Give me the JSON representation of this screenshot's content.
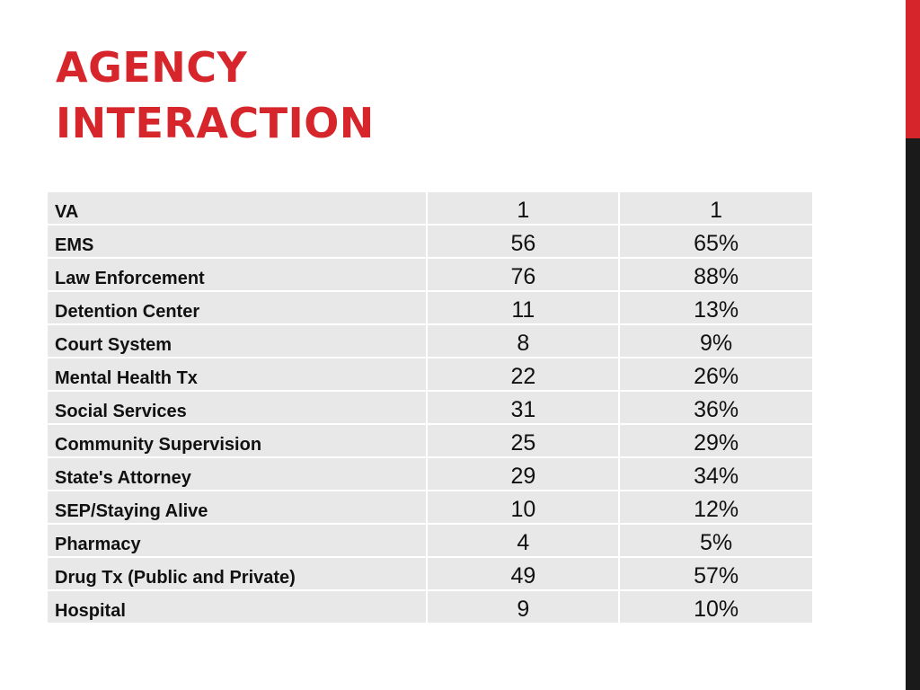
{
  "slide": {
    "title_line1": "AGENCY",
    "title_line2": "INTERACTION"
  },
  "colors": {
    "accent_red": "#d7262b",
    "accent_dark": "#1a1a1a",
    "row_bg": "#e8e8e8"
  },
  "table": {
    "rows": [
      {
        "label": "VA",
        "count": "1",
        "percent": "1"
      },
      {
        "label": "EMS",
        "count": "56",
        "percent": "65%"
      },
      {
        "label": "Law Enforcement",
        "count": "76",
        "percent": "88%"
      },
      {
        "label": "Detention Center",
        "count": "11",
        "percent": "13%"
      },
      {
        "label": "Court System",
        "count": "8",
        "percent": "9%"
      },
      {
        "label": "Mental Health Tx",
        "count": "22",
        "percent": "26%"
      },
      {
        "label": "Social Services",
        "count": "31",
        "percent": "36%"
      },
      {
        "label": "Community Supervision",
        "count": "25",
        "percent": "29%"
      },
      {
        "label": "State's Attorney",
        "count": "29",
        "percent": "34%"
      },
      {
        "label": "SEP/Staying Alive",
        "count": "10",
        "percent": "12%"
      },
      {
        "label": "Pharmacy",
        "count": "4",
        "percent": "5%"
      },
      {
        "label": "Drug Tx (Public and Private)",
        "count": "49",
        "percent": "57%"
      },
      {
        "label": "Hospital",
        "count": "9",
        "percent": "10%"
      }
    ]
  }
}
